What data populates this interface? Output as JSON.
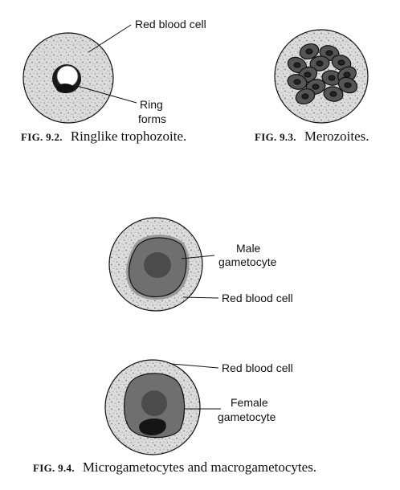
{
  "fig92": {
    "label_rbc": "Red blood cell",
    "label_ring_1": "Ring",
    "label_ring_2": "forms",
    "caption_num": "FIG. 9.2.",
    "caption_text": "Ringlike trophozoite."
  },
  "fig93": {
    "caption_num": "FIG. 9.3.",
    "caption_text": "Merozoites."
  },
  "fig94": {
    "label_male_1": "Male",
    "label_male_2": "gametocyte",
    "label_rbc_top": "Red blood cell",
    "label_rbc_bottom": "Red blood cell",
    "label_female_1": "Female",
    "label_female_2": "gametocyte",
    "caption_num": "FIG. 9.4.",
    "caption_text": "Microgametocytes and macrogametocytes."
  },
  "colors": {
    "cell_fill": "#d9d9d9",
    "stipple": "#8a8a8a",
    "gametocyte_fill": "#6e6e6e",
    "nucleus_fill": "#4a4a4a",
    "dark_fill": "#1a1a1a",
    "outline": "#111111"
  }
}
